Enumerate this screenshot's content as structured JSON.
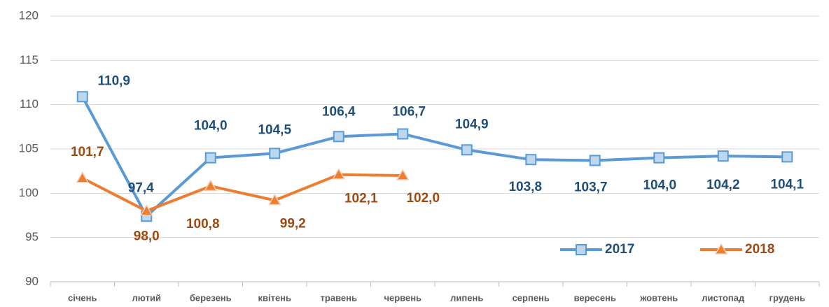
{
  "chart_data": {
    "type": "line",
    "categories": [
      "січень",
      "лютий",
      "березень",
      "квітень",
      "травень",
      "червень",
      "липень",
      "серпень",
      "вересень",
      "жовтень",
      "листопад",
      "грудень"
    ],
    "series": [
      {
        "name": "2017",
        "color": "#5b9bd5",
        "label_color": "#1f4e79",
        "marker": "square",
        "values": [
          110.9,
          97.4,
          104.0,
          104.5,
          106.4,
          106.7,
          104.9,
          103.8,
          103.7,
          104.0,
          104.2,
          104.1
        ],
        "value_labels": [
          "110,9",
          "97,4",
          "104,0",
          "104,5",
          "106,4",
          "106,7",
          "104,9",
          "103,8",
          "103,7",
          "104,0",
          "104,2",
          "104,1"
        ]
      },
      {
        "name": "2018",
        "color": "#ed7d31",
        "label_color": "#9c4a12",
        "marker": "triangle",
        "values": [
          101.7,
          98.0,
          100.8,
          99.2,
          102.1,
          102.0,
          null,
          null,
          null,
          null,
          null,
          null
        ],
        "value_labels": [
          "101,7",
          "98,0",
          "100,8",
          "99,2",
          "102,1",
          "102,0",
          null,
          null,
          null,
          null,
          null,
          null
        ]
      }
    ],
    "ylim": [
      90,
      120
    ],
    "yticks": [
      90,
      95,
      100,
      105,
      110,
      115,
      120
    ],
    "grid": true,
    "legend": "lower right"
  }
}
